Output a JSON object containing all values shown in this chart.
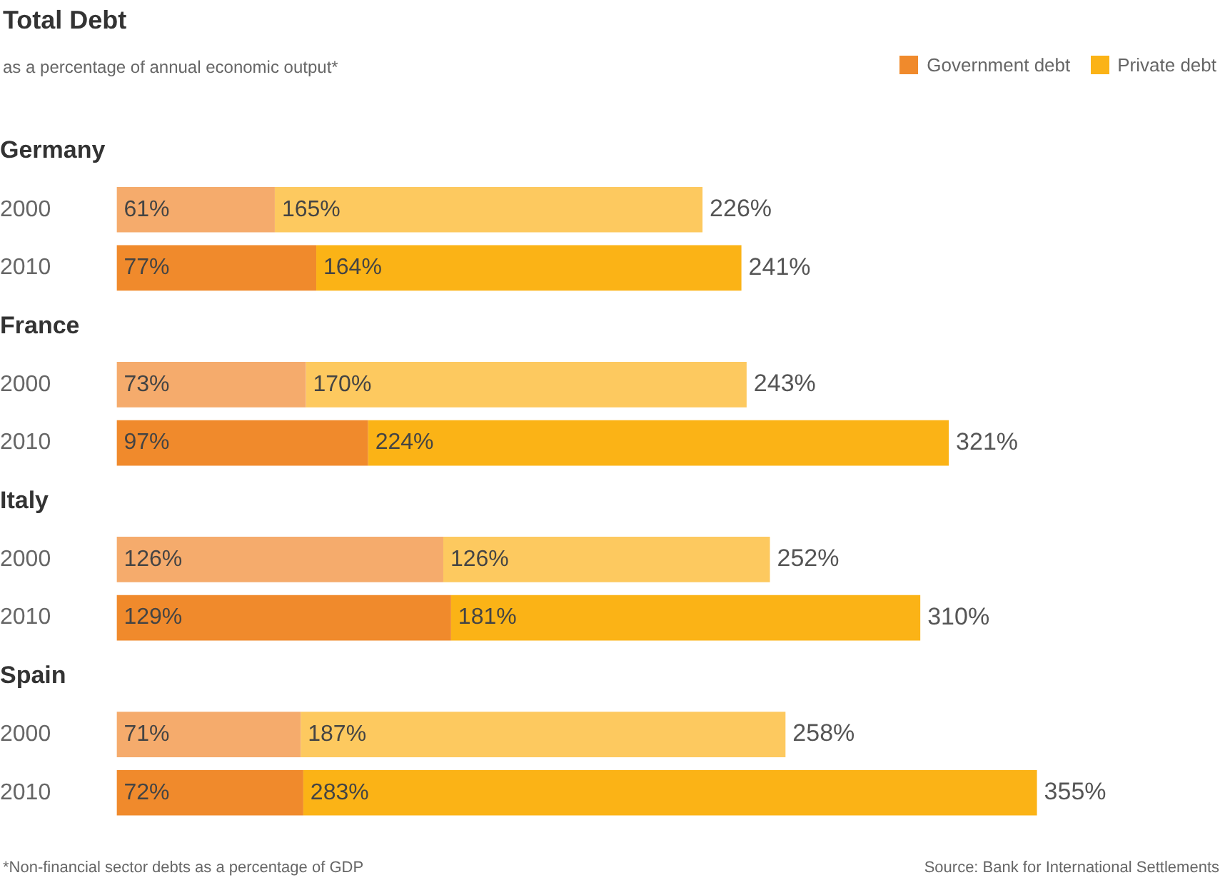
{
  "chart_data": {
    "type": "bar",
    "orientation": "horizontal",
    "stacked": true,
    "title": "Total Debt",
    "subtitle": "as a percentage of annual economic output*",
    "categories": [
      "Germany",
      "2000",
      "2010",
      "France",
      "2000",
      "2010",
      "Italy",
      "2000",
      "2010",
      "Spain",
      "2000",
      "2010"
    ],
    "series": [
      {
        "name": "Government debt",
        "color": "#f08a2c",
        "colors": [
          null,
          "#f5ab6c",
          "#f08a2c",
          null,
          "#f5ab6c",
          "#f08a2c",
          null,
          "#f5ab6c",
          "#f08a2c",
          null,
          "#f5ab6c",
          "#f08a2c"
        ],
        "values": [
          null,
          61,
          77,
          null,
          73,
          97,
          null,
          126,
          129,
          null,
          71,
          72
        ],
        "value_labels": [
          null,
          "61%",
          "77%",
          null,
          "73%",
          "97%",
          null,
          "126%",
          "129%",
          null,
          "71%",
          "72%"
        ]
      },
      {
        "name": "Private debt",
        "color": "#fbb316",
        "colors": [
          null,
          "#fdc95f",
          "#fbb316",
          null,
          "#fdc95f",
          "#fbb316",
          null,
          "#fdc95f",
          "#fbb316",
          null,
          "#fdc95f",
          "#fbb316"
        ],
        "values": [
          null,
          165,
          164,
          null,
          170,
          224,
          null,
          126,
          181,
          null,
          187,
          283
        ],
        "value_labels": [
          null,
          "165%",
          "164%",
          null,
          "170%",
          "224%",
          null,
          "126%",
          "181%",
          null,
          "187%",
          "283%"
        ]
      }
    ],
    "totals": [
      null,
      "226%",
      "241%",
      null,
      "243%",
      "321%",
      null,
      "252%",
      "310%",
      null,
      "258%",
      "355%"
    ],
    "tick_labels": "y",
    "legend": "top right",
    "annotations": [
      "*Non-financial sector debts as a percentage of GDP",
      "Source: Bank for International Settlements"
    ]
  }
}
